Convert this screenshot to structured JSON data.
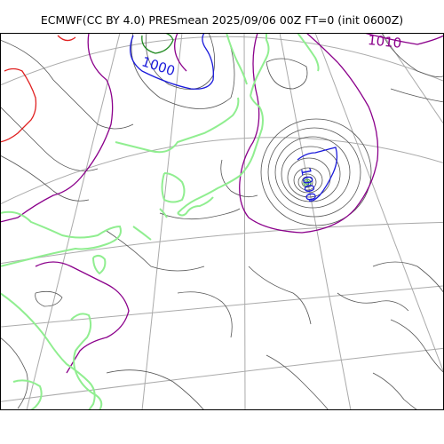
{
  "title": "ECMWF(CC BY 4.0) PRESmean 2025/09/06 00Z FT=0 (init 0600Z)",
  "isobar_labels": [
    {
      "text": "1000",
      "color": "#1a1adb"
    },
    {
      "text": "1010",
      "color": "#8b008b"
    },
    {
      "text": "1000",
      "color": "#1a1adb"
    }
  ],
  "colors": {
    "coastline": "#90ee90",
    "graticule": "#aaaaaa",
    "contour": "#555555",
    "isobar_1000": "#1a1adb",
    "isobar_1010": "#8b008b",
    "isobar_low": "#228b22",
    "isobar_high": "#e02020",
    "frame": "#000000"
  }
}
